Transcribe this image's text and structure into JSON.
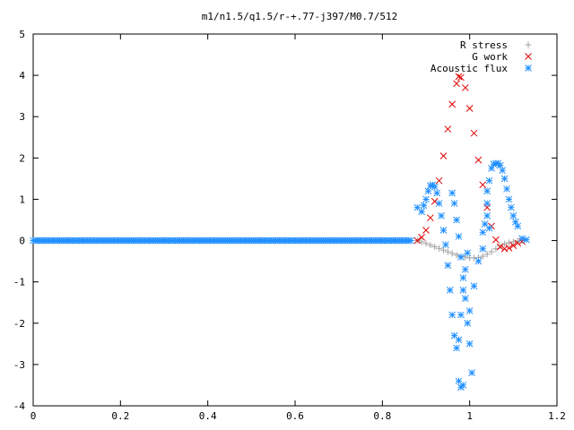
{
  "chart_data": {
    "type": "scatter",
    "title": "m1/n1.5/q1.5/r-+.77-j397/M0.7/512",
    "xlabel": "",
    "ylabel": "",
    "xlim": [
      0,
      1.2
    ],
    "ylim": [
      -4,
      5
    ],
    "x_ticks": [
      "0",
      "0.2",
      "0.4",
      "0.6",
      "0.8",
      "1",
      "1.2"
    ],
    "y_ticks": [
      "-4",
      "-3",
      "-2",
      "-1",
      "0",
      "1",
      "2",
      "3",
      "4",
      "5"
    ],
    "grid": false,
    "legend_position": "top-right",
    "series": [
      {
        "name": "R stress",
        "marker": "plus",
        "color": "#a0a0a0",
        "points": [
          [
            0.88,
            0.0
          ],
          [
            0.89,
            -0.03
          ],
          [
            0.9,
            -0.07
          ],
          [
            0.91,
            -0.11
          ],
          [
            0.92,
            -0.15
          ],
          [
            0.93,
            -0.19
          ],
          [
            0.94,
            -0.23
          ],
          [
            0.95,
            -0.27
          ],
          [
            0.96,
            -0.31
          ],
          [
            0.97,
            -0.35
          ],
          [
            0.98,
            -0.38
          ],
          [
            0.99,
            -0.4
          ],
          [
            1.0,
            -0.42
          ],
          [
            1.01,
            -0.42
          ],
          [
            1.02,
            -0.41
          ],
          [
            1.03,
            -0.38
          ],
          [
            1.04,
            -0.33
          ],
          [
            1.05,
            -0.27
          ],
          [
            1.06,
            -0.2
          ],
          [
            1.07,
            -0.13
          ],
          [
            1.08,
            -0.08
          ],
          [
            1.09,
            -0.05
          ],
          [
            1.1,
            -0.03
          ],
          [
            1.11,
            -0.01
          ],
          [
            1.12,
            0.0
          ]
        ]
      },
      {
        "name": "G work",
        "marker": "cross",
        "color": "#e00000",
        "points": [
          [
            0.88,
            0.0
          ],
          [
            0.89,
            0.08
          ],
          [
            0.9,
            0.25
          ],
          [
            0.91,
            0.55
          ],
          [
            0.92,
            0.95
          ],
          [
            0.93,
            1.45
          ],
          [
            0.94,
            2.05
          ],
          [
            0.95,
            2.7
          ],
          [
            0.96,
            3.3
          ],
          [
            0.97,
            3.8
          ],
          [
            0.975,
            3.97
          ],
          [
            0.98,
            3.95
          ],
          [
            0.99,
            3.7
          ],
          [
            1.0,
            3.2
          ],
          [
            1.01,
            2.6
          ],
          [
            1.02,
            1.95
          ],
          [
            1.03,
            1.35
          ],
          [
            1.04,
            0.8
          ],
          [
            1.05,
            0.35
          ],
          [
            1.06,
            0.02
          ],
          [
            1.07,
            -0.15
          ],
          [
            1.08,
            -0.2
          ],
          [
            1.09,
            -0.18
          ],
          [
            1.1,
            -0.12
          ],
          [
            1.11,
            -0.06
          ],
          [
            1.12,
            -0.02
          ]
        ]
      },
      {
        "name": "Acoustic flux",
        "marker": "star",
        "color": "#1f8fff",
        "points": [
          [
            0.0,
            0.0
          ],
          [
            0.05,
            0.0
          ],
          [
            0.1,
            0.0
          ],
          [
            0.15,
            0.0
          ],
          [
            0.2,
            0.0
          ],
          [
            0.25,
            0.0
          ],
          [
            0.3,
            0.0
          ],
          [
            0.35,
            0.0
          ],
          [
            0.4,
            0.0
          ],
          [
            0.45,
            0.0
          ],
          [
            0.5,
            0.0
          ],
          [
            0.55,
            0.0
          ],
          [
            0.6,
            0.0
          ],
          [
            0.65,
            0.0
          ],
          [
            0.7,
            0.0
          ],
          [
            0.75,
            0.0
          ],
          [
            0.8,
            0.0
          ],
          [
            0.85,
            0.0
          ],
          [
            0.87,
            0.0
          ],
          [
            0.88,
            0.8
          ],
          [
            0.89,
            0.7
          ],
          [
            0.895,
            0.85
          ],
          [
            0.9,
            1.0
          ],
          [
            0.905,
            1.2
          ],
          [
            0.91,
            1.33
          ],
          [
            0.915,
            1.35
          ],
          [
            0.92,
            1.3
          ],
          [
            0.925,
            1.15
          ],
          [
            0.93,
            0.9
          ],
          [
            0.935,
            0.6
          ],
          [
            0.94,
            0.25
          ],
          [
            0.945,
            -0.1
          ],
          [
            0.95,
            -0.6
          ],
          [
            0.955,
            -1.2
          ],
          [
            0.96,
            -1.8
          ],
          [
            0.965,
            -2.3
          ],
          [
            0.97,
            -2.6
          ],
          [
            0.975,
            -2.4
          ],
          [
            0.98,
            -1.8
          ],
          [
            0.985,
            -1.2
          ],
          [
            0.99,
            -0.7
          ],
          [
            0.995,
            -0.3
          ],
          [
            0.96,
            1.15
          ],
          [
            0.965,
            0.9
          ],
          [
            0.97,
            0.5
          ],
          [
            0.975,
            0.1
          ],
          [
            0.98,
            -0.4
          ],
          [
            0.985,
            -0.9
          ],
          [
            0.99,
            -1.4
          ],
          [
            0.995,
            -2.0
          ],
          [
            1.0,
            -2.5
          ],
          [
            1.005,
            -3.2
          ],
          [
            0.975,
            -3.4
          ],
          [
            0.98,
            -3.55
          ],
          [
            0.985,
            -3.5
          ],
          [
            1.0,
            -1.7
          ],
          [
            1.01,
            -1.1
          ],
          [
            1.02,
            -0.5
          ],
          [
            1.03,
            0.2
          ],
          [
            1.04,
            0.9
          ],
          [
            1.045,
            1.45
          ],
          [
            1.05,
            1.75
          ],
          [
            1.055,
            1.85
          ],
          [
            1.06,
            1.87
          ],
          [
            1.065,
            1.87
          ],
          [
            1.07,
            1.82
          ],
          [
            1.075,
            1.7
          ],
          [
            1.08,
            1.5
          ],
          [
            1.085,
            1.25
          ],
          [
            1.09,
            1.0
          ],
          [
            1.095,
            0.8
          ],
          [
            1.1,
            0.6
          ],
          [
            1.105,
            0.45
          ],
          [
            1.11,
            0.35
          ],
          [
            1.03,
            -0.2
          ],
          [
            1.035,
            0.4
          ],
          [
            1.04,
            0.6
          ],
          [
            1.045,
            0.3
          ],
          [
            1.04,
            1.2
          ],
          [
            1.12,
            0.05
          ],
          [
            1.13,
            0.02
          ]
        ]
      }
    ]
  }
}
